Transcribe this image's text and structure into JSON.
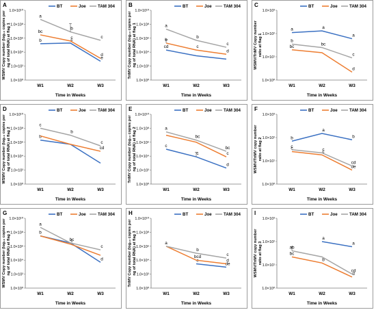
{
  "colors": {
    "BT": "#3a70c2",
    "Joe": "#ed7d31",
    "TAM 304": "#a5a5a5"
  },
  "chart_data": [
    {
      "panel": "A",
      "type": "line",
      "y_scale": "log",
      "ylim": [
        1,
        10000000000.0
      ],
      "yticks": [
        "1.0×10⁰",
        "1.0×10²",
        "1.0×10⁴",
        "1.0×10⁶",
        "1.0×10⁸",
        "1.0×10¹⁰"
      ],
      "ylabel_lines": [
        "WSMV Copy number (log₁₀ copies per",
        "ng of total RNA) at flag 1"
      ],
      "xlabel": "Time in Weeks",
      "categories": [
        "W1",
        "W2",
        "W3"
      ],
      "legend": [
        "BT",
        "Joe",
        "TAM 304"
      ],
      "series": [
        {
          "name": "BT",
          "values": [
            160000.0,
            200000.0,
            500
          ],
          "err": [
            0,
            0,
            0
          ],
          "labels": [
            "b",
            "c",
            "e"
          ]
        },
        {
          "name": "Joe",
          "values": [
            3000000.0,
            400000.0,
            1300
          ],
          "err": [
            0,
            0,
            0
          ],
          "labels": [
            "bc",
            "c",
            "d"
          ]
        },
        {
          "name": "TAM 304",
          "values": [
            500000000.0,
            8000000.0,
            500000.0
          ],
          "err": [
            0,
            120000000.0,
            0
          ],
          "labels": [
            "a",
            "b",
            "c"
          ]
        }
      ]
    },
    {
      "panel": "B",
      "type": "line",
      "y_scale": "log",
      "ylim": [
        1,
        10000000000.0
      ],
      "yticks": [
        "1.0×10⁰",
        "1.0×10²",
        "1.0×10⁴",
        "1.0×10⁶",
        "1.0×10⁸",
        "1.0×10¹⁰"
      ],
      "ylabel_lines": [
        "TriMV Copy number (log₁₀ copies per",
        "ng of total RNA) at flag 1"
      ],
      "xlabel": "Time in Weeks",
      "categories": [
        "W1",
        "W2",
        "W3"
      ],
      "legend": [
        "BT",
        "Joe",
        "TAM 304"
      ],
      "series": [
        {
          "name": "BT",
          "values": [
            20000,
            3000,
            1000
          ],
          "err": [
            0,
            0,
            0
          ],
          "labels": [
            "cd",
            "",
            ""
          ]
        },
        {
          "name": "Joe",
          "values": [
            200000.0,
            20000,
            5000
          ],
          "err": [
            500000.0,
            0,
            0
          ],
          "labels": [
            "b",
            "c",
            "d"
          ]
        },
        {
          "name": "TAM 304",
          "values": [
            20000000.0,
            500000.0,
            50000
          ],
          "err": [
            0,
            0,
            0
          ],
          "labels": [
            "a",
            "b",
            "c"
          ]
        }
      ]
    },
    {
      "panel": "C",
      "type": "line",
      "y_scale": "log",
      "ylim": [
        1,
        1000
      ],
      "yticks": [
        "1.0×10⁰",
        "1.0×10¹",
        "1.0×10²",
        "1.0×10³"
      ],
      "ylabel_lines": [
        "WSMV/TriMV Copy number",
        "ratio at flag 1"
      ],
      "xlabel": "Time in Weeks",
      "categories": [
        "W1",
        "W2",
        "W3"
      ],
      "legend": [
        "BT",
        "Joe",
        "TAM 304"
      ],
      "series": [
        {
          "name": "BT",
          "values": [
            110,
            130,
            60
          ],
          "err": [
            0,
            0,
            0
          ],
          "labels": [
            "a",
            "a",
            "a"
          ]
        },
        {
          "name": "Joe",
          "values": [
            20,
            15,
            2.2
          ],
          "err": [
            0,
            0,
            0
          ],
          "labels": [
            "bc",
            "",
            "d"
          ]
        },
        {
          "name": "TAM 304",
          "values": [
            35,
            25,
            9
          ],
          "err": [
            0,
            0,
            0
          ],
          "labels": [
            "b",
            "bc",
            "c"
          ]
        }
      ]
    },
    {
      "panel": "D",
      "type": "line",
      "y_scale": "log",
      "ylim": [
        1,
        10000000000.0
      ],
      "yticks": [
        "1.0×10⁰",
        "1.0×10²",
        "1.0×10⁴",
        "1.0×10⁶",
        "1.0×10⁸",
        "1.0×10¹⁰"
      ],
      "ylabel_lines": [
        "WSMV Copy number (log₁₀ copies per",
        "ng of total RNA) at flag 2"
      ],
      "xlabel": "Time in Weeks",
      "categories": [
        "W1",
        "W2",
        "W3"
      ],
      "legend": [
        "BT",
        "Joe",
        "TAM 304"
      ],
      "series": [
        {
          "name": "BT",
          "values": [
            2000000.0,
            500000.0,
            1000
          ],
          "err": [
            0,
            0,
            0
          ],
          "labels": [
            "b",
            "",
            ""
          ]
        },
        {
          "name": "Joe",
          "values": [
            8000000.0,
            500000.0,
            50000
          ],
          "err": [
            0,
            0,
            0
          ],
          "labels": [
            "",
            "",
            "cd"
          ]
        },
        {
          "name": "TAM 304",
          "values": [
            100000000.0,
            10000000.0,
            300000.0
          ],
          "err": [
            0,
            0,
            0
          ],
          "labels": [
            "c",
            "b",
            "c"
          ]
        }
      ]
    },
    {
      "panel": "E",
      "type": "line",
      "y_scale": "log",
      "ylim": [
        1,
        10000000000.0
      ],
      "yticks": [
        "1.0×10⁰",
        "1.0×10²",
        "1.0×10⁴",
        "1.0×10⁶",
        "1.0×10⁸",
        "1.0×10¹⁰"
      ],
      "ylabel_lines": [
        "TriMV Copy number (log₁₀ copies per",
        "ng of total RNA) at flag 2"
      ],
      "xlabel": "Time in Weeks",
      "categories": [
        "W1",
        "W2",
        "W3"
      ],
      "legend": [
        "BT",
        "Joe",
        "TAM 304"
      ],
      "series": [
        {
          "name": "BT",
          "values": [
            100000.0,
            8000,
            200
          ],
          "err": [
            0,
            30000,
            0
          ],
          "labels": [
            "c",
            "c",
            "d"
          ]
        },
        {
          "name": "Joe",
          "values": [
            10000000.0,
            1000000.0,
            8000
          ],
          "err": [
            0,
            0,
            0
          ],
          "labels": [
            "",
            "",
            "c"
          ]
        },
        {
          "name": "TAM 304",
          "values": [
            30000000.0,
            2000000.0,
            50000
          ],
          "err": [
            0,
            0,
            0
          ],
          "labels": [
            "a",
            "bc",
            "bc"
          ]
        }
      ]
    },
    {
      "panel": "F",
      "type": "line",
      "y_scale": "log",
      "ylim": [
        1,
        1000
      ],
      "yticks": [
        "1.0×10⁰",
        "1.0×10¹",
        "1.0×10²",
        "1.0×10³"
      ],
      "ylabel_lines": [
        "WSMV/TriMV copy number",
        "ratio at flag 2"
      ],
      "xlabel": "Time in Weeks",
      "categories": [
        "W1",
        "W2",
        "W3"
      ],
      "legend": [
        "BT",
        "Joe",
        "TAM 304"
      ],
      "series": [
        {
          "name": "BT",
          "values": [
            70,
            150,
            80
          ],
          "err": [
            0,
            0,
            0
          ],
          "labels": [
            "b",
            "a",
            "b"
          ]
        },
        {
          "name": "Joe",
          "values": [
            25,
            18,
            4
          ],
          "err": [
            0,
            0,
            0
          ],
          "labels": [
            "c",
            "c",
            "de"
          ]
        },
        {
          "name": "TAM 304",
          "values": [
            30,
            22,
            6
          ],
          "err": [
            0,
            0,
            0
          ],
          "labels": [
            "c",
            "c",
            "cd"
          ]
        }
      ]
    },
    {
      "panel": "G",
      "type": "line",
      "y_scale": "log",
      "ylim": [
        1,
        10000000000.0
      ],
      "yticks": [
        "1.0×10⁰",
        "1.0×10²",
        "1.0×10⁴",
        "1.0×10⁶",
        "1.0×10⁸",
        "1.0×10¹⁰"
      ],
      "ylabel_lines": [
        "WSMV Copy number (log₁₀ copies per",
        "ng of total RNA) at flag 3"
      ],
      "xlabel": "Time in Weeks",
      "categories": [
        "W1",
        "W2",
        "W3"
      ],
      "legend": [
        "BT",
        "Joe",
        "TAM 304"
      ],
      "series": [
        {
          "name": "BT",
          "values": [
            30000000.0,
            3000000.0,
            5000
          ],
          "err": [
            0,
            0,
            0
          ],
          "labels": [
            "b",
            "",
            "d"
          ]
        },
        {
          "name": "Joe",
          "values": [
            30000000.0,
            2000000.0,
            50000
          ],
          "err": [
            0,
            0,
            0
          ],
          "labels": [
            "",
            "c",
            ""
          ]
        },
        {
          "name": "TAM 304",
          "values": [
            500000000.0,
            3000000.0,
            300000.0
          ],
          "err": [
            0,
            0,
            0
          ],
          "labels": [
            "a",
            "bc",
            "c"
          ]
        }
      ]
    },
    {
      "panel": "H",
      "type": "line",
      "y_scale": "log",
      "ylim": [
        1,
        10000000000.0
      ],
      "yticks": [
        "1.0×10⁰",
        "1.0×10²",
        "1.0×10⁴",
        "1.0×10⁶",
        "1.0×10⁸",
        "1.0×10¹⁰"
      ],
      "ylabel_lines": [
        "TriMV Copy number (log₁₀ copies per",
        "ng of total RNA) at flag 3"
      ],
      "xlabel": "Time in Weeks",
      "categories": [
        "W1",
        "W2",
        "W3"
      ],
      "legend": [
        "BT",
        "Joe",
        "TAM 304"
      ],
      "series": [
        {
          "name": "BT",
          "values": [
            null,
            3000,
            1000
          ],
          "err": [
            0,
            0,
            0
          ],
          "labels": [
            "",
            "e",
            "de"
          ]
        },
        {
          "name": "Joe",
          "values": [
            1000000.0,
            10000,
            3000
          ],
          "err": [
            0,
            0,
            0
          ],
          "labels": [
            "",
            "bcd",
            "d"
          ]
        },
        {
          "name": "TAM 304",
          "values": [
            1000000.0,
            100000.0,
            20000
          ],
          "err": [
            0,
            0,
            0
          ],
          "labels": [
            "a",
            "b",
            "c"
          ]
        }
      ]
    },
    {
      "panel": "I",
      "type": "line",
      "y_scale": "log",
      "ylim": [
        1,
        1000
      ],
      "yticks": [
        "1.0×10⁰",
        "1.0×10¹",
        "1.0×10²",
        "1.0×10³"
      ],
      "ylabel_lines": [
        "WSMV/TriMV copy number",
        "ratio at flag 3"
      ],
      "xlabel": "Time in Weeks",
      "categories": [
        "W1",
        "W2",
        "W3"
      ],
      "legend": [
        "BT",
        "Joe",
        "TAM 304"
      ],
      "series": [
        {
          "name": "BT",
          "values": [
            null,
            100,
            60
          ],
          "err": [
            0,
            0,
            0
          ],
          "labels": [
            "",
            "a",
            "a"
          ]
        },
        {
          "name": "Joe",
          "values": [
            22,
            12,
            3
          ],
          "err": [
            0,
            0,
            0
          ],
          "labels": [
            "bc",
            "b",
            "d"
          ]
        },
        {
          "name": "TAM 304",
          "values": [
            40,
            22,
            4
          ],
          "err": [
            20,
            0,
            0
          ],
          "labels": [
            "ab",
            "",
            "cd"
          ]
        }
      ]
    }
  ]
}
